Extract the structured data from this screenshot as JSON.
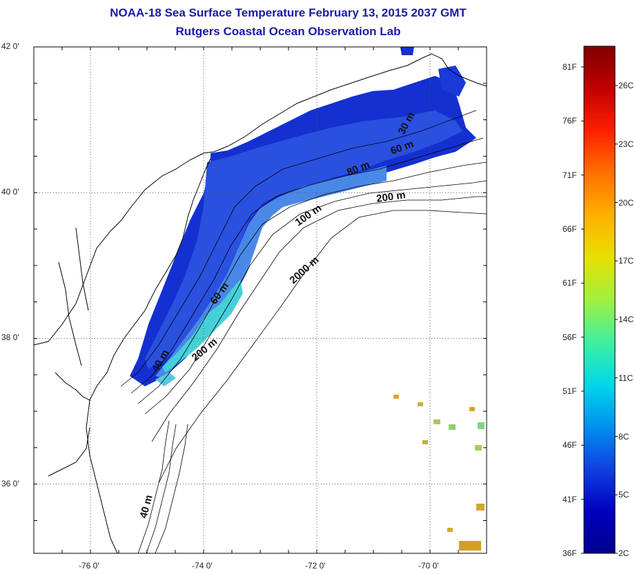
{
  "title": {
    "line1": "NOAA-18 Sea Surface Temperature February 13, 2015 2037 GMT",
    "line2": "Rutgers Coastal Ocean Observation Lab"
  },
  "map": {
    "lat_ticks": [
      {
        "value": 42,
        "label": "42 0'"
      },
      {
        "value": 40,
        "label": "40 0'"
      },
      {
        "value": 38,
        "label": "38 0'"
      },
      {
        "value": 36,
        "label": "36 0'"
      }
    ],
    "lon_ticks": [
      {
        "value": -76,
        "label": "-76 0'"
      },
      {
        "value": -74,
        "label": "-74 0'"
      },
      {
        "value": -72,
        "label": "-72 0'"
      },
      {
        "value": -70,
        "label": "-70 0'"
      }
    ],
    "lat_range": [
      35.05,
      42.0
    ],
    "lon_range": [
      -77.0,
      -69.0
    ],
    "grid": "dotted",
    "isobath_labels": [
      "30 m",
      "60 m",
      "80 m",
      "200 m",
      "100 m",
      "2000 m",
      "60 m",
      "40 m",
      "200 m",
      "40 m"
    ],
    "colors": {
      "land_outline": "#000000",
      "contour": "#000000",
      "cold": "#0b1ec8",
      "mid": "#3a6de0",
      "warm_shelf": "#3fd0d8",
      "gulf_stream": "#d4a020"
    }
  },
  "colorbar": {
    "fahrenheit": [
      "81F",
      "76F",
      "71F",
      "66F",
      "61F",
      "56F",
      "51F",
      "46F",
      "41F",
      "36F"
    ],
    "celsius": [
      "26C",
      "23C",
      "20C",
      "17C",
      "14C",
      "11C",
      "8C",
      "5C",
      "2C"
    ],
    "gradient": [
      "#800000",
      "#c00000",
      "#ff2000",
      "#ff7000",
      "#ffb000",
      "#e8e000",
      "#a0f040",
      "#40f0a0",
      "#00d8e8",
      "#0090f0",
      "#1040e0",
      "#0000c0",
      "#00008c"
    ]
  }
}
